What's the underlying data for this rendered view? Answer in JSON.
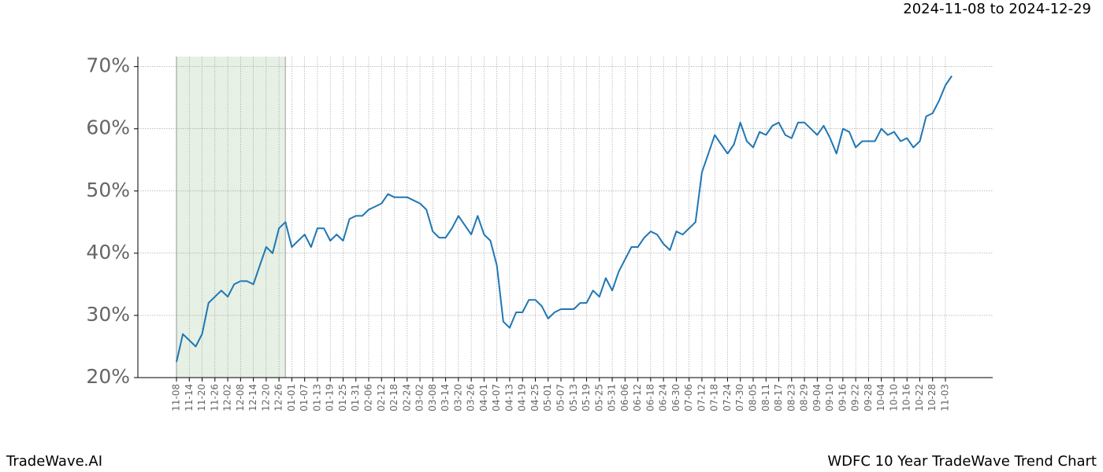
{
  "chart_data": {
    "type": "line",
    "subtitle": "2024-11-08 to 2024-12-29",
    "brand": "TradeWave.AI",
    "title": "WDFC 10 Year TradeWave Trend Chart",
    "shaded_span": {
      "from": "11-08",
      "to": "12-26",
      "color": "#e6f0e4"
    },
    "categories": [
      "11-08",
      null,
      "11-14",
      null,
      "11-20",
      null,
      "11-26",
      null,
      "12-02",
      null,
      "12-08",
      null,
      "12-14",
      null,
      "12-20",
      null,
      "12-26",
      null,
      "01-01",
      null,
      "01-07",
      null,
      "01-13",
      null,
      "01-19",
      null,
      "01-25",
      null,
      "01-31",
      null,
      "02-06",
      null,
      "02-12",
      null,
      "02-18",
      null,
      "02-24",
      null,
      "03-02",
      null,
      "03-08",
      null,
      "03-14",
      null,
      "03-20",
      null,
      "03-26",
      null,
      "04-01",
      null,
      "04-07",
      null,
      "04-13",
      null,
      "04-19",
      null,
      "04-25",
      null,
      "05-01",
      null,
      "05-07",
      null,
      "05-13",
      null,
      "05-19",
      null,
      "05-25",
      null,
      "05-31",
      null,
      "06-06",
      null,
      "06-12",
      null,
      "06-18",
      null,
      "06-24",
      null,
      "06-30",
      null,
      "07-06",
      null,
      "07-12",
      null,
      "07-18",
      null,
      "07-24",
      null,
      "07-30",
      null,
      "08-05",
      null,
      "08-11",
      null,
      "08-17",
      null,
      "08-23",
      null,
      "08-29",
      null,
      "09-04",
      null,
      "09-10",
      null,
      "09-16",
      null,
      "09-22",
      null,
      "09-28",
      null,
      "10-04",
      null,
      "10-10",
      null,
      "10-16",
      null,
      "10-22",
      null,
      "10-28",
      null,
      "11-03",
      null
    ],
    "series": [
      {
        "name": "WDFC",
        "color": "#1f77b4",
        "values": [
          22.5,
          27,
          26,
          25,
          27,
          32,
          33,
          34,
          33,
          35,
          35.5,
          35.5,
          35,
          38,
          41,
          40,
          44,
          45,
          41,
          42,
          43,
          41,
          44,
          44,
          42,
          43,
          42,
          45.5,
          46,
          46,
          47,
          47.5,
          48,
          49.5,
          49,
          49,
          49,
          48.5,
          48,
          47,
          43.5,
          42.5,
          42.5,
          44,
          46,
          44.5,
          43,
          46,
          43,
          42,
          38,
          29,
          28,
          30.5,
          30.5,
          32.5,
          32.5,
          31.5,
          29.5,
          30.5,
          31,
          31,
          31,
          32,
          32,
          34,
          33,
          36,
          34,
          37,
          39,
          41,
          41,
          42.5,
          43.5,
          43,
          41.5,
          40.5,
          43.5,
          43,
          44,
          45,
          53,
          56,
          59,
          57.5,
          56,
          57.5,
          61,
          58,
          57,
          59.5,
          59,
          60.5,
          61,
          59,
          58.5,
          61,
          61,
          60,
          59,
          60.5,
          58.5,
          56,
          60,
          59.5,
          57,
          58,
          58,
          58,
          60,
          59,
          59.5,
          58,
          58.5,
          57,
          58,
          62,
          62.5,
          64.5,
          67,
          68.5
        ]
      }
    ],
    "ylim": [
      20,
      71.6
    ],
    "yticks": [
      {
        "value": 20,
        "label": "20%"
      },
      {
        "value": 30,
        "label": "30%"
      },
      {
        "value": 40,
        "label": "40%"
      },
      {
        "value": 50,
        "label": "50%"
      },
      {
        "value": 60,
        "label": "60%"
      },
      {
        "value": 70,
        "label": "70%"
      }
    ],
    "grid": true
  }
}
